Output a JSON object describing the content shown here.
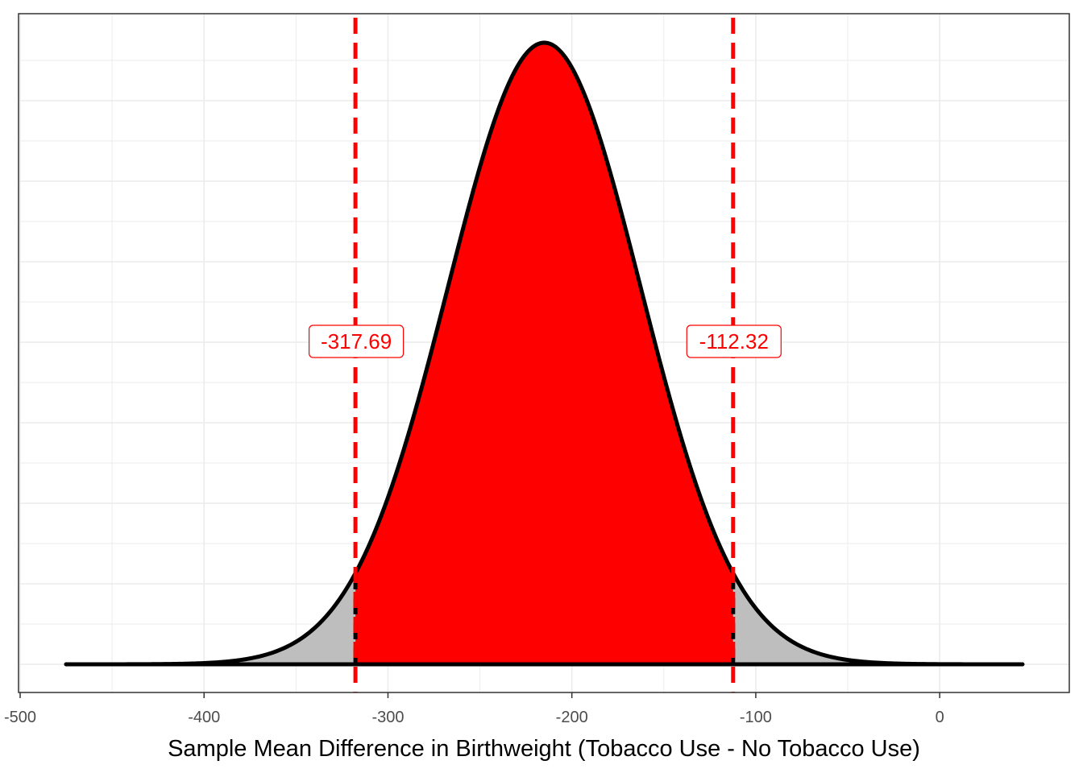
{
  "chart_data": {
    "type": "area",
    "title": "",
    "xlabel": "Sample Mean Difference in Birthweight (Tobacco Use - No Tobacco Use)",
    "ylabel": "",
    "xlim": [
      -500,
      15
    ],
    "x_ticks": [
      -500,
      -400,
      -300,
      -200,
      -100,
      0
    ],
    "x_tick_labels": [
      "-500",
      "-400",
      "-300",
      "-200",
      "-100",
      "0"
    ],
    "distribution": {
      "kind": "normal density",
      "mean": -215,
      "sd": 52.4,
      "x_range": [
        -475,
        45
      ]
    },
    "interval": {
      "lower": -317.69,
      "upper": -112.32,
      "lower_label": "-317.69",
      "upper_label": "-112.32"
    },
    "grid": true,
    "y_tick_labels_shown": false,
    "colors": {
      "interval_fill": "#ff0000",
      "tail_fill": "#bebebe",
      "curve": "#000000",
      "dashed_lines": "#ff0000",
      "label_text": "#ff0000",
      "grid": "#ebebeb",
      "panel_border": "#333333"
    }
  }
}
